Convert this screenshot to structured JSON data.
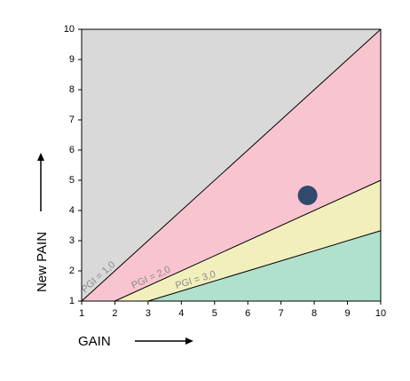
{
  "chart_data": {
    "type": "scatter",
    "x_label": "GAIN",
    "y_label": "New PAIN",
    "xlim": [
      1,
      10
    ],
    "ylim": [
      1,
      10
    ],
    "xticks": [
      1,
      2,
      3,
      4,
      5,
      6,
      7,
      8,
      9,
      10
    ],
    "yticks": [
      1,
      2,
      3,
      4,
      5,
      6,
      7,
      8,
      9,
      10
    ],
    "background_color": "#d9d9d9",
    "lines": [
      {
        "label": "PGI = 1,0",
        "x": [
          1,
          10
        ],
        "y": [
          1,
          10
        ],
        "fill": "#f8c4d0"
      },
      {
        "label": "PGI = 2,0",
        "x": [
          2,
          10
        ],
        "y": [
          1,
          5
        ],
        "fill": "#f1efbc"
      },
      {
        "label": "PGI = 3,0",
        "x": [
          3,
          10
        ],
        "y": [
          1,
          3.33
        ],
        "fill": "#afe1cd"
      }
    ],
    "points": {
      "x": [
        7.8
      ],
      "y": [
        4.5
      ],
      "color": "#2f4a6c"
    }
  }
}
